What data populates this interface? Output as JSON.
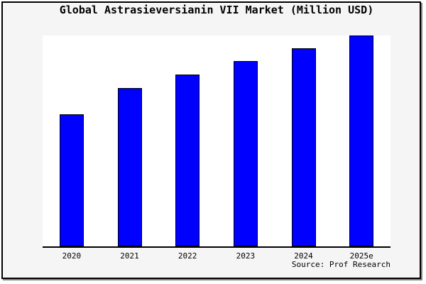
{
  "figure": {
    "source_note": "Source: Prof Research",
    "background_color": "#f5f5f5",
    "plot_background_color": "#ffffff",
    "frame_border_color": "#000000",
    "frame_shadow_color": "#888888"
  },
  "chart_data": {
    "type": "bar",
    "title": "Global Astrasieversianin VII Market (Million USD)",
    "categories": [
      "2020",
      "2021",
      "2022",
      "2023",
      "2024",
      "2025e"
    ],
    "values": [
      62.6,
      75.0,
      81.4,
      87.8,
      93.8,
      100
    ],
    "values_note": "no y-axis shown; values estimated from bar heights, indexed to 2025e = 100",
    "xlabel": "",
    "ylabel": "",
    "ylim": [
      0,
      100
    ],
    "grid": false,
    "legend": false,
    "y_axis_visible": false,
    "bar_color": "#0000ff",
    "bar_edge_color": "#000000",
    "annotations": [
      "Source: Prof Research"
    ]
  }
}
